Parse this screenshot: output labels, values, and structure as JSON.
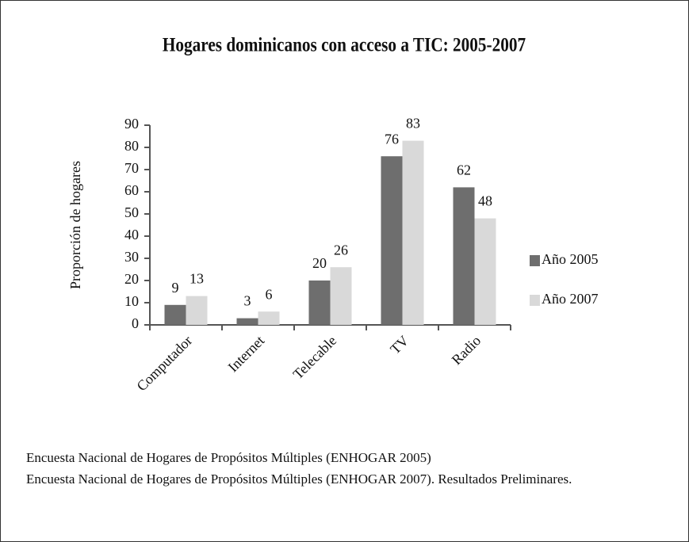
{
  "chart_data": {
    "type": "bar",
    "title": "Hogares dominicanos con acceso a TIC: 2005-2007",
    "y_label": "Proporción de hogares",
    "categories": [
      "Computador",
      "Internet",
      "Telecable",
      "TV",
      "Radio"
    ],
    "series": [
      {
        "name": "Año 2005",
        "color": "#6e6e6e",
        "values": [
          9,
          3,
          20,
          76,
          62
        ]
      },
      {
        "name": "Año 2007",
        "color": "#d9d9d9",
        "values": [
          13,
          6,
          26,
          83,
          48
        ]
      }
    ],
    "ylim": [
      0,
      90
    ],
    "yticks": [
      0,
      10,
      20,
      30,
      40,
      50,
      60,
      70,
      80,
      90
    ],
    "legend": "right",
    "notes": [
      "Encuesta Nacional de Hogares de Propósitos Múltiples (ENHOGAR 2005)",
      "Encuesta Nacional de Hogares de Propósitos Múltiples (ENHOGAR 2007). Resultados Preliminares."
    ]
  }
}
